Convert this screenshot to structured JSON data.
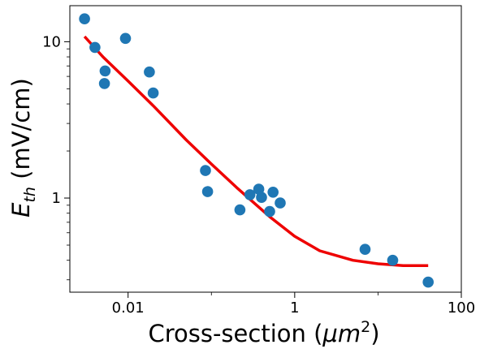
{
  "chart_data": {
    "type": "scatter",
    "title": "",
    "xlabel": "Cross-section (μm²)",
    "ylabel": "E_th (mV/cm)",
    "xscale": "log",
    "yscale": "log",
    "xlim": [
      0.002,
      100
    ],
    "ylim": [
      0.25,
      17
    ],
    "x_ticks": [
      {
        "value": 0.01,
        "label": "0.01"
      },
      {
        "value": 1,
        "label": "1"
      },
      {
        "value": 100,
        "label": "100"
      }
    ],
    "y_ticks": [
      {
        "value": 1,
        "label": "1"
      },
      {
        "value": 10,
        "label": "10"
      }
    ],
    "grid": false,
    "colors": {
      "points": "#1f77b4",
      "fit": "#ee0000"
    },
    "series": [
      {
        "type": "scatter",
        "points": [
          {
            "x": 0.003,
            "y": 14.0
          },
          {
            "x": 0.004,
            "y": 9.2
          },
          {
            "x": 0.0053,
            "y": 6.5
          },
          {
            "x": 0.0052,
            "y": 5.4
          },
          {
            "x": 0.0093,
            "y": 10.5
          },
          {
            "x": 0.018,
            "y": 6.4
          },
          {
            "x": 0.02,
            "y": 4.7
          },
          {
            "x": 0.085,
            "y": 1.5
          },
          {
            "x": 0.09,
            "y": 1.1
          },
          {
            "x": 0.22,
            "y": 0.84
          },
          {
            "x": 0.29,
            "y": 1.05
          },
          {
            "x": 0.37,
            "y": 1.14
          },
          {
            "x": 0.4,
            "y": 1.01
          },
          {
            "x": 0.5,
            "y": 0.82
          },
          {
            "x": 0.55,
            "y": 1.09
          },
          {
            "x": 0.67,
            "y": 0.93
          },
          {
            "x": 7.0,
            "y": 0.47
          },
          {
            "x": 15.0,
            "y": 0.4
          },
          {
            "x": 40.0,
            "y": 0.29
          }
        ]
      },
      {
        "type": "line",
        "points": [
          {
            "x": 0.003,
            "y": 10.8
          },
          {
            "x": 0.005,
            "y": 8.0
          },
          {
            "x": 0.01,
            "y": 5.6
          },
          {
            "x": 0.02,
            "y": 3.9
          },
          {
            "x": 0.05,
            "y": 2.35
          },
          {
            "x": 0.1,
            "y": 1.65
          },
          {
            "x": 0.2,
            "y": 1.17
          },
          {
            "x": 0.5,
            "y": 0.76
          },
          {
            "x": 1.0,
            "y": 0.57
          },
          {
            "x": 2.0,
            "y": 0.46
          },
          {
            "x": 5.0,
            "y": 0.4
          },
          {
            "x": 10.0,
            "y": 0.38
          },
          {
            "x": 20.0,
            "y": 0.37
          },
          {
            "x": 40.0,
            "y": 0.37
          }
        ]
      }
    ]
  }
}
